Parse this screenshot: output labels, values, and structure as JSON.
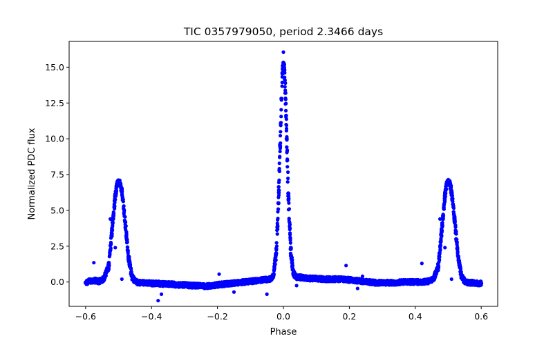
{
  "chart_data": {
    "type": "scatter",
    "title": "TIC 0357979050, period 2.3466 days",
    "xlabel": "Phase",
    "ylabel": "Normalized PDC flux",
    "xlim": [
      -0.65,
      0.65
    ],
    "ylim": [
      -1.7,
      16.8
    ],
    "x_ticks": [
      -0.6,
      -0.4,
      -0.2,
      0.0,
      0.2,
      0.4,
      0.6
    ],
    "x_tick_labels": [
      "−0.6",
      "−0.4",
      "−0.2",
      "0.0",
      "0.2",
      "0.4",
      "0.6"
    ],
    "y_ticks": [
      0.0,
      2.5,
      5.0,
      7.5,
      10.0,
      12.5,
      15.0
    ],
    "y_tick_labels": [
      "0.0",
      "2.5",
      "5.0",
      "7.5",
      "10.0",
      "12.5",
      "15.0"
    ],
    "grid": false,
    "marker_color": "#0000ff",
    "series": [
      {
        "name": "phase-folded light curve",
        "points": [
          [
            -0.6,
            -0.05
          ],
          [
            -0.59,
            0.05
          ],
          [
            -0.58,
            0.1
          ],
          [
            -0.57,
            0.1
          ],
          [
            -0.56,
            0.05
          ],
          [
            -0.545,
            0.2
          ],
          [
            -0.53,
            1.1
          ],
          [
            -0.52,
            3.6
          ],
          [
            -0.51,
            6.0
          ],
          [
            -0.505,
            6.8
          ],
          [
            -0.5,
            7.0
          ],
          [
            -0.495,
            6.9
          ],
          [
            -0.49,
            6.3
          ],
          [
            -0.48,
            4.2
          ],
          [
            -0.47,
            1.8
          ],
          [
            -0.46,
            0.4
          ],
          [
            -0.45,
            0.05
          ],
          [
            -0.44,
            -0.05
          ],
          [
            -0.42,
            -0.05
          ],
          [
            -0.4,
            -0.1
          ],
          [
            -0.38,
            -0.1
          ],
          [
            -0.36,
            -0.15
          ],
          [
            -0.34,
            -0.15
          ],
          [
            -0.32,
            -0.2
          ],
          [
            -0.3,
            -0.2
          ],
          [
            -0.28,
            -0.25
          ],
          [
            -0.26,
            -0.25
          ],
          [
            -0.24,
            -0.3
          ],
          [
            -0.22,
            -0.25
          ],
          [
            -0.2,
            -0.2
          ],
          [
            -0.18,
            -0.15
          ],
          [
            -0.16,
            -0.1
          ],
          [
            -0.14,
            -0.05
          ],
          [
            -0.12,
            0.0
          ],
          [
            -0.1,
            0.05
          ],
          [
            -0.08,
            0.1
          ],
          [
            -0.06,
            0.15
          ],
          [
            -0.04,
            0.2
          ],
          [
            -0.03,
            0.5
          ],
          [
            -0.022,
            2.0
          ],
          [
            -0.015,
            5.5
          ],
          [
            -0.01,
            9.5
          ],
          [
            -0.006,
            12.8
          ],
          [
            -0.003,
            14.6
          ],
          [
            0.0,
            15.3
          ],
          [
            0.003,
            14.8
          ],
          [
            0.006,
            13.2
          ],
          [
            0.01,
            10.0
          ],
          [
            0.015,
            6.0
          ],
          [
            0.022,
            2.3
          ],
          [
            0.03,
            0.6
          ],
          [
            0.04,
            0.35
          ],
          [
            0.06,
            0.3
          ],
          [
            0.08,
            0.25
          ],
          [
            0.1,
            0.25
          ],
          [
            0.12,
            0.2
          ],
          [
            0.14,
            0.2
          ],
          [
            0.16,
            0.2
          ],
          [
            0.18,
            0.2
          ],
          [
            0.2,
            0.15
          ],
          [
            0.22,
            0.1
          ],
          [
            0.24,
            0.05
          ],
          [
            0.26,
            0.0
          ],
          [
            0.28,
            -0.05
          ],
          [
            0.3,
            -0.05
          ],
          [
            0.32,
            -0.05
          ],
          [
            0.34,
            -0.05
          ],
          [
            0.36,
            0.0
          ],
          [
            0.38,
            0.0
          ],
          [
            0.4,
            0.0
          ],
          [
            0.42,
            0.0
          ],
          [
            0.44,
            0.05
          ],
          [
            0.455,
            0.2
          ],
          [
            0.47,
            1.1
          ],
          [
            0.48,
            3.6
          ],
          [
            0.49,
            6.0
          ],
          [
            0.495,
            6.8
          ],
          [
            0.5,
            7.0
          ],
          [
            0.505,
            6.9
          ],
          [
            0.51,
            6.3
          ],
          [
            0.52,
            4.2
          ],
          [
            0.53,
            1.8
          ],
          [
            0.54,
            0.4
          ],
          [
            0.55,
            0.05
          ],
          [
            0.56,
            -0.05
          ],
          [
            0.57,
            -0.05
          ],
          [
            0.58,
            -0.05
          ],
          [
            0.59,
            -0.1
          ],
          [
            0.6,
            -0.1
          ]
        ]
      },
      {
        "name": "outliers",
        "points": [
          [
            0.0,
            16.05
          ],
          [
            -0.575,
            1.35
          ],
          [
            -0.525,
            4.4
          ],
          [
            -0.52,
            3.2
          ],
          [
            -0.51,
            2.4
          ],
          [
            -0.49,
            0.2
          ],
          [
            -0.38,
            -1.3
          ],
          [
            -0.37,
            -0.85
          ],
          [
            -0.195,
            0.55
          ],
          [
            -0.15,
            -0.7
          ],
          [
            -0.05,
            -0.85
          ],
          [
            0.04,
            -0.25
          ],
          [
            0.19,
            1.15
          ],
          [
            0.225,
            -0.45
          ],
          [
            0.24,
            0.4
          ],
          [
            0.42,
            1.3
          ],
          [
            0.475,
            4.4
          ],
          [
            0.48,
            3.2
          ],
          [
            0.49,
            2.4
          ],
          [
            0.51,
            0.2
          ]
        ]
      }
    ]
  }
}
